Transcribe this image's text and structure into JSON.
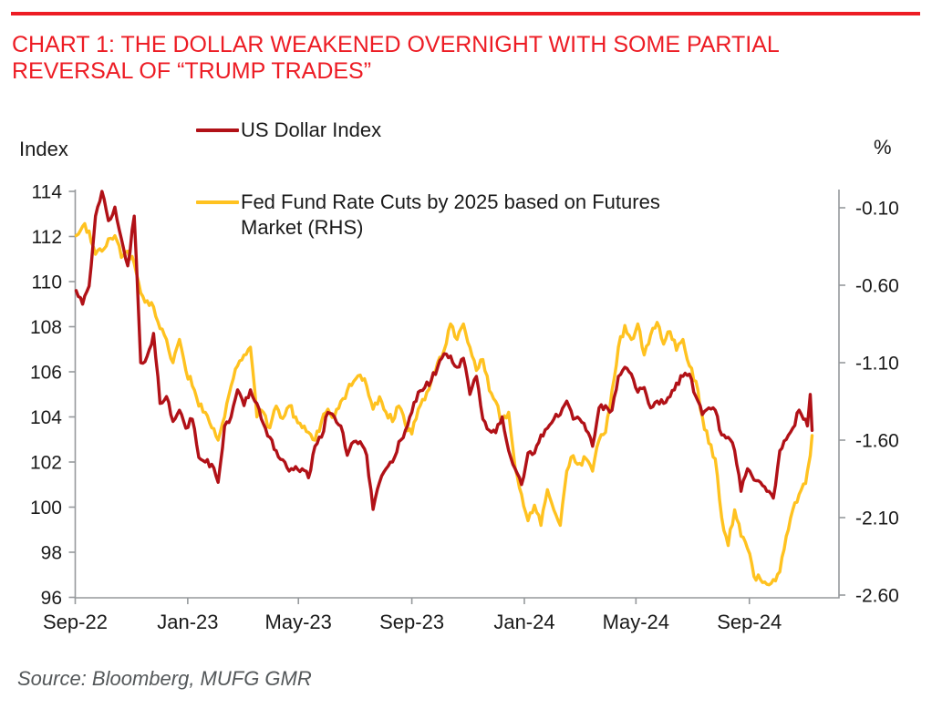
{
  "theme": {
    "accent_red": "#ED1C24",
    "line_red": "#B11117",
    "line_yellow": "#FFC220",
    "axis_gray": "#96999C",
    "text_dark": "#1A1A1A",
    "source_gray": "#54585A"
  },
  "header": {
    "title_line1": "CHART 1: THE DOLLAR WEAKENED OVERNIGHT WITH SOME PARTIAL",
    "title_line2": "REVERSAL OF “TRUMP TRADES”"
  },
  "footer": {
    "source": "Source: Bloomberg, MUFG GMR"
  },
  "chart_data": {
    "type": "line",
    "title": "CHART 1: THE DOLLAR WEAKENED OVERNIGHT WITH SOME PARTIAL REVERSAL OF “TRUMP TRADES”",
    "grid": "off",
    "legend_position": "top-left-inside",
    "left_axis": {
      "label": "Index",
      "ticks": [
        114,
        112,
        110,
        108,
        106,
        104,
        102,
        100,
        98,
        96
      ],
      "range": [
        96,
        114
      ]
    },
    "right_axis": {
      "label": "%",
      "ticks": [
        "-0.10",
        "-0.60",
        "-1.10",
        "-1.60",
        "-2.10",
        "-2.60"
      ],
      "range": [
        -2.6,
        -0.1
      ]
    },
    "x_axis": {
      "tick_labels": [
        "Sep-22",
        "Jan-23",
        "May-23",
        "Sep-23",
        "Jan-24",
        "May-24",
        "Sep-24"
      ],
      "tick_dates": [
        "2022-09-01",
        "2023-01-01",
        "2023-05-01",
        "2023-09-01",
        "2024-01-01",
        "2024-05-01",
        "2024-09-01"
      ],
      "start_date": "2022-09-02",
      "end_date": "2024-11-08",
      "interval_days": 7
    },
    "legend": {
      "item1_label": "US Dollar Index",
      "item2_label_line1": "Fed Fund Rate Cuts by 2025 based on Futures",
      "item2_label_line2": "Market (RHS)"
    },
    "series": [
      {
        "name": "US Dollar Index",
        "axis": "left",
        "color": "#B11117",
        "weekly_values": [
          109.6,
          109.0,
          109.8,
          112.9,
          114.0,
          112.7,
          113.3,
          111.9,
          110.7,
          112.9,
          106.4,
          106.7,
          107.7,
          104.6,
          104.9,
          103.8,
          104.3,
          103.5,
          103.9,
          102.2,
          102.0,
          101.9,
          101.1,
          103.6,
          104.0,
          105.2,
          104.5,
          105.2,
          104.6,
          103.7,
          103.1,
          102.5,
          102.1,
          101.6,
          101.8,
          101.7,
          101.3,
          102.7,
          103.1,
          104.2,
          104.0,
          103.6,
          102.3,
          102.9,
          102.9,
          102.3,
          99.9,
          101.1,
          101.7,
          102.0,
          102.9,
          103.4,
          104.2,
          105.1,
          105.3,
          105.6,
          106.2,
          106.8,
          106.7,
          106.2,
          106.6,
          105.0,
          105.8,
          103.9,
          103.4,
          103.3,
          104.0,
          102.5,
          101.7,
          101.0,
          102.4,
          102.4,
          103.2,
          103.5,
          103.9,
          104.1,
          104.7,
          103.9,
          103.9,
          103.4,
          102.7,
          104.4,
          104.5,
          104.3,
          105.8,
          106.2,
          105.9,
          105.1,
          105.3,
          104.4,
          104.7,
          104.6,
          104.9,
          105.5,
          105.8,
          105.9,
          104.9,
          104.1,
          104.4,
          104.3,
          103.2,
          103.1,
          102.5,
          100.7,
          101.7,
          101.2,
          101.1,
          100.7,
          100.4,
          102.5,
          103.0,
          103.5,
          104.3,
          103.9
        ],
        "extra_points": [
          [
            793,
            103.6
          ],
          [
            796,
            105.0
          ],
          [
            798,
            103.4
          ]
        ]
      },
      {
        "name": "Fed Fund Rate Cuts by 2025 based on Futures Market (RHS)",
        "axis": "right",
        "color": "#FFC220",
        "weekly_values": [
          -0.28,
          -0.22,
          -0.25,
          -0.4,
          -0.38,
          -0.3,
          -0.28,
          -0.42,
          -0.38,
          -0.46,
          -0.65,
          -0.7,
          -0.74,
          -0.88,
          -0.95,
          -1.1,
          -0.95,
          -1.15,
          -1.25,
          -1.38,
          -1.42,
          -1.52,
          -1.6,
          -1.45,
          -1.25,
          -1.12,
          -1.05,
          -1.0,
          -1.45,
          -1.42,
          -1.52,
          -1.38,
          -1.46,
          -1.38,
          -1.45,
          -1.52,
          -1.55,
          -1.6,
          -1.48,
          -1.4,
          -1.45,
          -1.35,
          -1.28,
          -1.22,
          -1.18,
          -1.25,
          -1.4,
          -1.32,
          -1.42,
          -1.48,
          -1.38,
          -1.5,
          -1.56,
          -1.4,
          -1.34,
          -1.22,
          -1.1,
          -1.02,
          -0.85,
          -0.95,
          -0.85,
          -1.0,
          -1.15,
          -1.08,
          -1.28,
          -1.35,
          -1.48,
          -1.42,
          -1.78,
          -1.95,
          -2.12,
          -2.02,
          -2.15,
          -1.92,
          -2.05,
          -2.15,
          -1.8,
          -1.7,
          -1.75,
          -1.72,
          -1.8,
          -1.6,
          -1.55,
          -1.28,
          -1.0,
          -0.86,
          -0.95,
          -0.85,
          -1.05,
          -0.92,
          -0.84,
          -0.98,
          -0.9,
          -1.02,
          -0.95,
          -1.12,
          -1.22,
          -1.45,
          -1.62,
          -1.72,
          -2.1,
          -2.28,
          -2.05,
          -2.22,
          -2.3,
          -2.48,
          -2.5,
          -2.53,
          -2.5,
          -2.45,
          -2.22,
          -2.05,
          -1.95,
          -1.88
        ],
        "extra_points": [
          [
            793,
            -1.8
          ],
          [
            796,
            -1.7
          ],
          [
            798,
            -1.57
          ]
        ]
      }
    ]
  }
}
